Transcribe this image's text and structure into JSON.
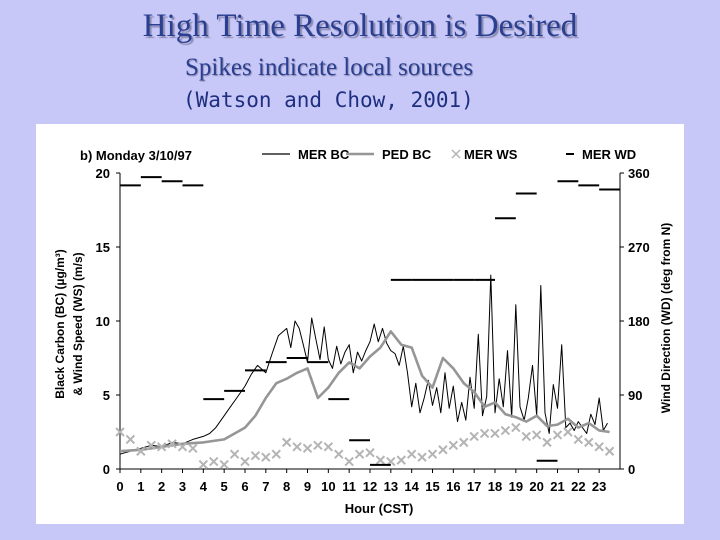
{
  "slide": {
    "title": "High Time Resolution is Desired",
    "subtitle": "Spikes indicate local sources",
    "citation": "(Watson and Chow, 2001)"
  },
  "chart_data": {
    "type": "line",
    "panel_label": "b) Monday  3/10/97",
    "xlabel": "Hour (CST)",
    "ylabel_left_1": "Black Carbon (BC) (µg/m³)",
    "ylabel_left_2": "& Wind Speed (WS) (m/s)",
    "ylabel_right": "Wind Direction (WD) (deg from N)",
    "xlim": [
      0,
      24
    ],
    "ylim_left": [
      0,
      20
    ],
    "ylim_right": [
      0,
      360
    ],
    "x_ticks": [
      "0",
      "1",
      "2",
      "3",
      "4",
      "5",
      "6",
      "7",
      "8",
      "9",
      "10",
      "11",
      "12",
      "13",
      "14",
      "15",
      "16",
      "17",
      "18",
      "19",
      "20",
      "21",
      "22",
      "23"
    ],
    "y_ticks_left": [
      "0",
      "5",
      "10",
      "15",
      "20"
    ],
    "y_ticks_right": [
      "0",
      "90",
      "180",
      "270",
      "360"
    ],
    "series": [
      {
        "name": "MER BC",
        "color": "#000000",
        "style": "line",
        "x": [
          0,
          0.5,
          1,
          1.5,
          2,
          2.5,
          3,
          3.5,
          4,
          4.3,
          4.6,
          5,
          5.3,
          5.6,
          6,
          6.3,
          6.6,
          7,
          7.3,
          7.6,
          8,
          8.2,
          8.4,
          8.6,
          8.8,
          9,
          9.2,
          9.4,
          9.6,
          9.8,
          10,
          10.2,
          10.4,
          10.6,
          10.8,
          11,
          11.2,
          11.4,
          11.6,
          11.8,
          12,
          12.2,
          12.4,
          12.6,
          12.8,
          13,
          13.2,
          13.4,
          13.6,
          13.8,
          14,
          14.2,
          14.4,
          14.6,
          14.8,
          15,
          15.2,
          15.4,
          15.6,
          15.8,
          16,
          16.2,
          16.4,
          16.6,
          16.8,
          17,
          17.2,
          17.4,
          17.6,
          17.8,
          18,
          18.2,
          18.4,
          18.6,
          18.8,
          19,
          19.2,
          19.4,
          19.6,
          19.8,
          20,
          20.2,
          20.4,
          20.6,
          20.8,
          21,
          21.2,
          21.4,
          21.6,
          21.8,
          22,
          22.2,
          22.4,
          22.6,
          22.8,
          23,
          23.2,
          23.4
        ],
        "values": [
          1.0,
          1.2,
          1.4,
          1.6,
          1.5,
          1.8,
          1.7,
          2.0,
          2.2,
          2.4,
          2.8,
          3.6,
          4.2,
          4.8,
          5.6,
          6.4,
          7.0,
          6.5,
          7.8,
          9.0,
          9.5,
          8.2,
          10.0,
          9.5,
          8.4,
          7.2,
          10.2,
          8.8,
          7.4,
          9.6,
          7.4,
          6.8,
          8.3,
          7.1,
          7.9,
          8.4,
          6.5,
          7.9,
          7.3,
          8.0,
          8.6,
          9.8,
          8.6,
          9.5,
          8.5,
          8.0,
          7.8,
          7.0,
          8.3,
          6.5,
          4.2,
          5.8,
          3.8,
          4.8,
          6.0,
          4.3,
          5.5,
          3.8,
          6.5,
          4.1,
          5.6,
          3.2,
          4.5,
          3.3,
          6.2,
          4.1,
          9.1,
          3.6,
          4.9,
          13.1,
          3.8,
          6.1,
          4.2,
          8.0,
          3.5,
          11.1,
          4.2,
          3.3,
          4.8,
          7.0,
          3.6,
          12.4,
          3.8,
          2.4,
          5.7,
          4.1,
          8.4,
          2.8,
          3.1,
          2.6,
          3.2,
          2.8,
          2.4,
          3.7,
          3.0,
          4.8,
          2.6,
          3.1
        ]
      },
      {
        "name": "PED BC",
        "color": "#969696",
        "style": "line",
        "x": [
          0,
          1,
          2,
          3,
          4,
          5,
          5.5,
          6,
          6.5,
          7,
          7.5,
          8,
          8.5,
          9,
          9.5,
          10,
          10.5,
          11,
          11.5,
          12,
          12.5,
          13,
          13.5,
          14,
          14.5,
          15,
          15.5,
          16,
          16.5,
          17,
          17.5,
          18,
          18.5,
          19,
          19.5,
          20,
          20.5,
          21,
          21.5,
          22,
          22.5,
          23,
          23.5
        ],
        "values": [
          1.2,
          1.3,
          1.5,
          1.7,
          1.8,
          2.0,
          2.4,
          2.8,
          3.6,
          4.8,
          5.8,
          6.1,
          6.5,
          6.8,
          4.8,
          5.5,
          6.5,
          7.2,
          6.8,
          7.6,
          8.2,
          9.3,
          8.4,
          8.2,
          6.3,
          5.5,
          7.5,
          6.8,
          5.8,
          5.2,
          4.2,
          4.5,
          3.7,
          3.5,
          3.2,
          3.6,
          2.9,
          3.0,
          3.4,
          2.8,
          3.1,
          2.6,
          2.5
        ]
      },
      {
        "name": "MER WS",
        "color": "#b4b4b4",
        "style": "x-markers",
        "x": [
          0,
          0.5,
          1,
          1.5,
          2,
          2.5,
          3,
          3.5,
          4,
          4.5,
          5,
          5.5,
          6,
          6.5,
          7,
          7.5,
          8,
          8.5,
          9,
          9.5,
          10,
          10.5,
          11,
          11.5,
          12,
          12.5,
          13,
          13.5,
          14,
          14.5,
          15,
          15.5,
          16,
          16.5,
          17,
          17.5,
          18,
          18.5,
          19,
          19.5,
          20,
          20.5,
          21,
          21.5,
          22,
          22.5,
          23,
          23.5
        ],
        "values": [
          2.5,
          2.0,
          1.2,
          1.6,
          1.5,
          1.7,
          1.5,
          1.4,
          0.3,
          0.5,
          0.3,
          1.0,
          0.5,
          0.9,
          0.8,
          1.0,
          1.8,
          1.5,
          1.4,
          1.6,
          1.5,
          1.0,
          0.5,
          1.0,
          1.1,
          0.6,
          0.5,
          0.6,
          1.0,
          0.8,
          1.0,
          1.3,
          1.6,
          1.8,
          2.2,
          2.4,
          2.4,
          2.6,
          2.8,
          2.2,
          2.3,
          1.8,
          2.3,
          2.5,
          2.0,
          1.8,
          1.5,
          1.2
        ]
      },
      {
        "name": "MER WD",
        "color": "#000000",
        "style": "hour-dashes",
        "x": [
          0,
          1,
          2,
          3,
          4,
          5,
          6,
          7,
          8,
          9,
          10,
          11,
          12,
          13,
          14,
          15,
          16,
          17,
          18,
          19,
          20,
          21,
          22,
          23
        ],
        "values": [
          345,
          355,
          350,
          345,
          85,
          95,
          120,
          130,
          135,
          130,
          85,
          35,
          5,
          230,
          230,
          230,
          230,
          230,
          305,
          335,
          10,
          350,
          345,
          340
        ]
      }
    ]
  }
}
